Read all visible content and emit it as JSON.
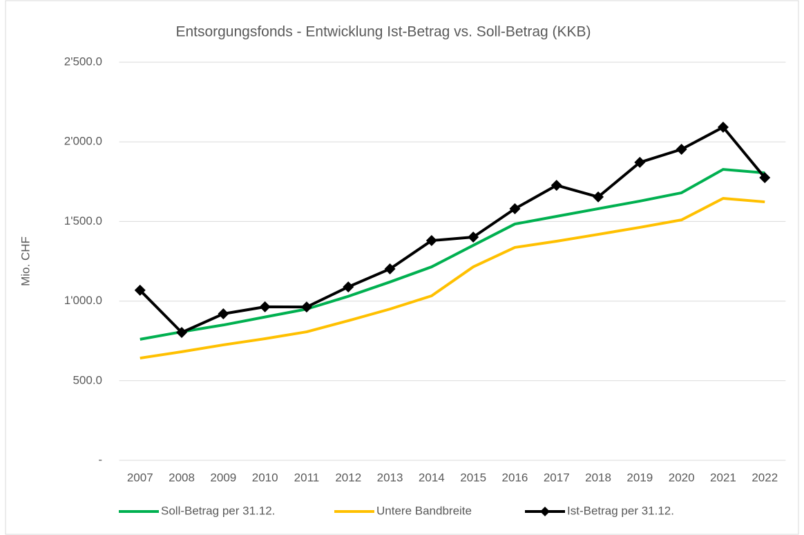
{
  "chart_data": {
    "type": "line",
    "title": "Entsorgungsfonds - Entwicklung Ist-Betrag vs. Soll-Betrag  (KKB)",
    "y_label": "Mio. CHF",
    "categories": [
      "2007",
      "2008",
      "2009",
      "2010",
      "2011",
      "2012",
      "2013",
      "2014",
      "2015",
      "2016",
      "2017",
      "2018",
      "2019",
      "2020",
      "2021",
      "2022"
    ],
    "series": [
      {
        "name": "Soll-Betrag per 31.12.",
        "color": "#00b050",
        "marker": false,
        "values": [
          760,
          807,
          850,
          900,
          950,
          1030,
          1120,
          1215,
          1350,
          1484,
          1532,
          1580,
          1628,
          1680,
          1827,
          1805
        ]
      },
      {
        "name": "Untere Bandbreite",
        "color": "#ffc000",
        "marker": false,
        "values": [
          642,
          682,
          725,
          764,
          807,
          877,
          950,
          1033,
          1215,
          1337,
          1376,
          1419,
          1463,
          1510,
          1645,
          1623
        ]
      },
      {
        "name": "Ist-Betrag per 31.12.",
        "color": "#000000",
        "marker": true,
        "values": [
          1068,
          803,
          920,
          964,
          963,
          1089,
          1202,
          1380,
          1402,
          1580,
          1727,
          1654,
          1871,
          1953,
          2092,
          1775
        ]
      }
    ],
    "ylim": [
      0,
      2500
    ],
    "yticks": [
      {
        "value": 0,
        "label": "-"
      },
      {
        "value": 500,
        "label": "500.0"
      },
      {
        "value": 1000,
        "label": "1'000.0"
      },
      {
        "value": 1500,
        "label": "1'500.0"
      },
      {
        "value": 2000,
        "label": "2'000.0"
      },
      {
        "value": 2500,
        "label": "2'500.0"
      }
    ],
    "grid": true,
    "legend": "bottom"
  }
}
